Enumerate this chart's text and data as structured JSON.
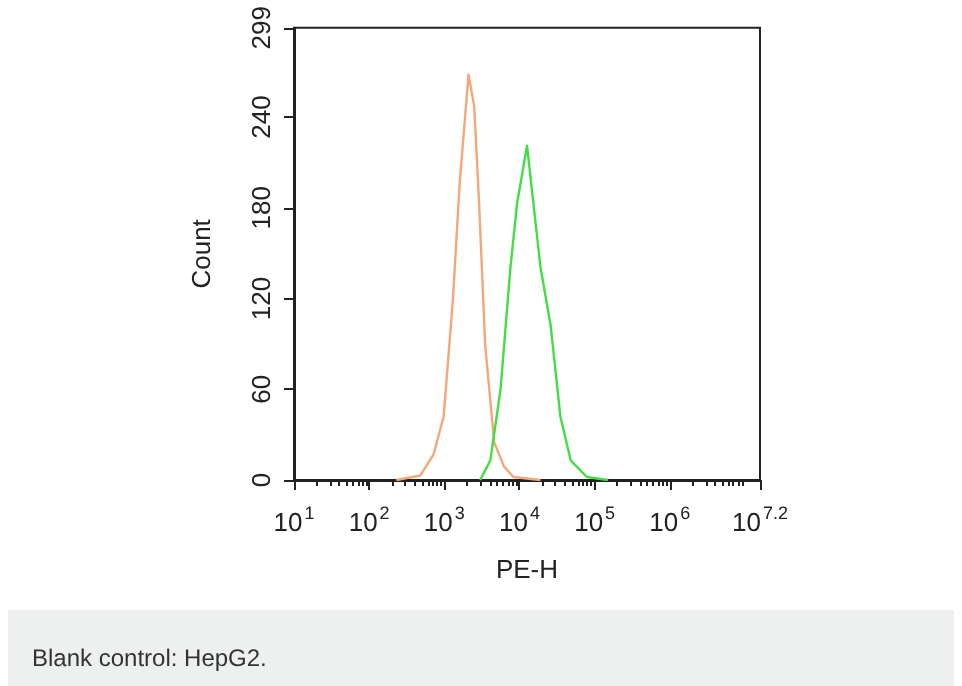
{
  "chart_data": {
    "type": "line",
    "xlabel": "PE-H",
    "ylabel": "Count",
    "log": "x",
    "xlim": [
      10,
      15848932
    ],
    "xticks": [
      {
        "value": 10,
        "label": "10$^{1}$"
      },
      {
        "value": 100,
        "label": "10$^{2}$"
      },
      {
        "value": 1000,
        "label": "10$^{3}$"
      },
      {
        "value": 10000,
        "label": "10$^{4}$"
      },
      {
        "value": 100000,
        "label": "10$^{5}$"
      },
      {
        "value": 1000000,
        "label": "10$^{6}$"
      },
      {
        "value": 15848932,
        "label": "10$^{7.2}$"
      }
    ],
    "ylim": [
      0,
      299
    ],
    "yticks": [
      0,
      60,
      120,
      180,
      240,
      299
    ],
    "grid": false,
    "marker": "none",
    "line_style": "solid",
    "series": [
      {
        "color": "#f2a878",
        "x": [
          230,
          480,
          720,
          980,
          1300,
          1600,
          2100,
          2500,
          2900,
          3500,
          4600,
          6200,
          8300,
          19000
        ],
        "values": [
          0,
          3,
          17,
          42,
          119,
          196,
          268,
          247,
          183,
          89,
          25,
          9,
          2,
          0
        ]
      },
      {
        "color": "#44dd44",
        "x": [
          3000,
          4100,
          5600,
          7600,
          9300,
          12600,
          15000,
          19000,
          26000,
          35000,
          48000,
          79000,
          150000
        ],
        "values": [
          0,
          13,
          60,
          141,
          183,
          221,
          187,
          141,
          102,
          42,
          13,
          2,
          0
        ]
      }
    ],
    "annotations": [
      "Blank control: HepG2."
    ]
  }
}
